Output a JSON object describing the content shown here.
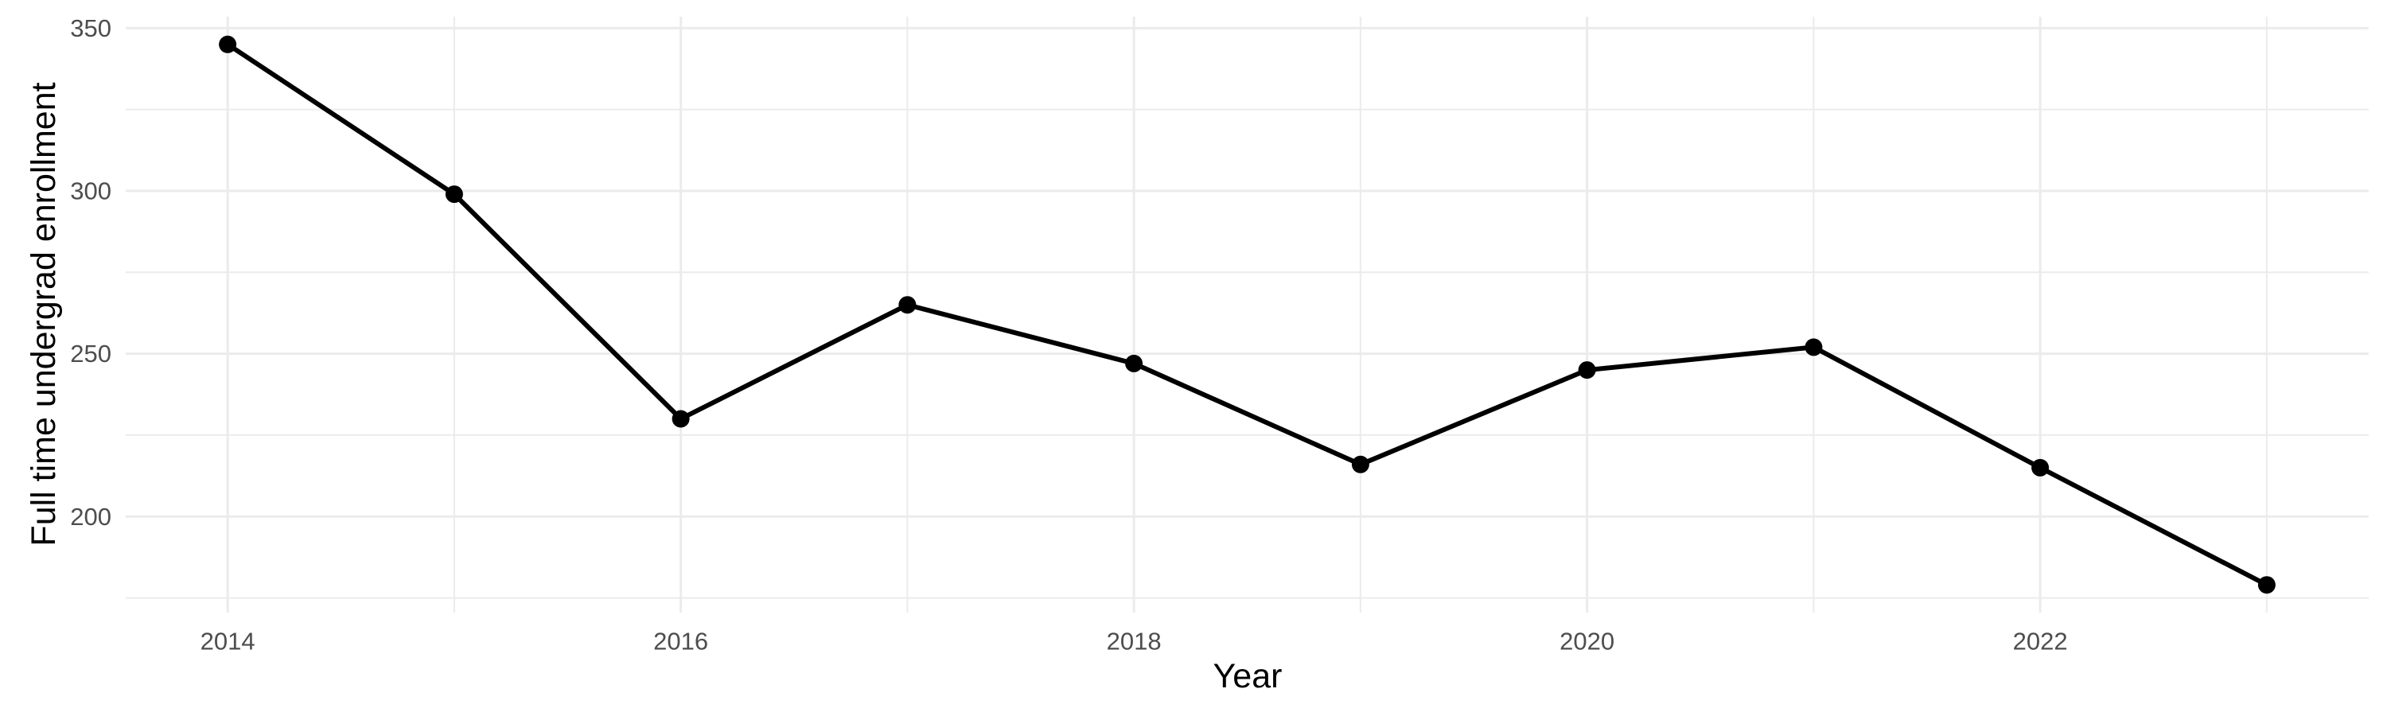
{
  "chart_data": {
    "type": "line",
    "title": "",
    "xlabel": "Year",
    "ylabel": "Full time undergrad enrollment",
    "series": [
      {
        "name": "Full time undergrad enrollment",
        "x": [
          2014,
          2015,
          2016,
          2017,
          2018,
          2019,
          2020,
          2021,
          2022,
          2023
        ],
        "values": [
          345,
          299,
          230,
          265,
          247,
          216,
          245,
          252,
          215,
          179
        ]
      }
    ],
    "x_tick_labels": [
      "2014",
      "2016",
      "2018",
      "2020",
      "2022"
    ],
    "x_major_ticks": [
      2014,
      2016,
      2018,
      2020,
      2022
    ],
    "x_minor_gridlines": [
      2015,
      2017,
      2019,
      2021,
      2023
    ],
    "y_tick_labels": [
      "200",
      "250",
      "300",
      "350"
    ],
    "y_major_ticks": [
      200,
      250,
      300,
      350
    ],
    "y_minor_gridlines": [
      175,
      225,
      275,
      325
    ],
    "xlim": [
      2013.55,
      2023.45
    ],
    "ylim": [
      170.5,
      353.5
    ],
    "grid": "on",
    "legend": "none",
    "marker": "filled-circle",
    "colors": {
      "background": "#ffffff",
      "gridline": "#ebebeb",
      "tick_label": "#4d4d4d",
      "axis_title": "#000000",
      "line": "#000000",
      "point": "#000000"
    }
  }
}
